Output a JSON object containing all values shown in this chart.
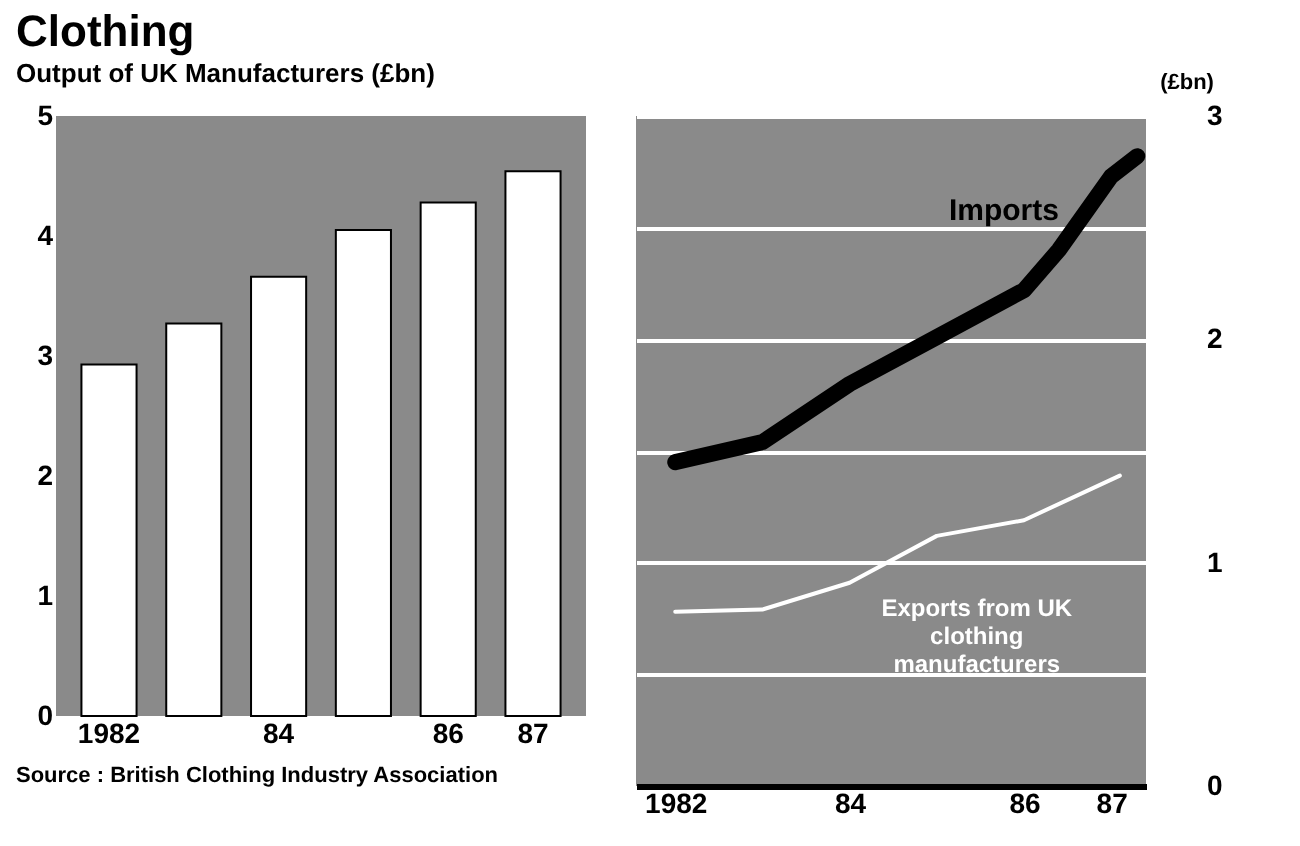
{
  "chart_data": [
    {
      "type": "bar",
      "title": "Clothing",
      "subtitle": "Output of UK Manufacturers (£bn)",
      "categories": [
        "1982",
        null,
        "84",
        null,
        "86",
        "87"
      ],
      "values": [
        2.93,
        3.27,
        3.66,
        4.05,
        4.28,
        4.54
      ],
      "color": "#ffffff",
      "ylim": [
        0,
        5
      ],
      "yticks": [
        0,
        1,
        2,
        3,
        4,
        5
      ],
      "grid": false,
      "annotations": [
        "Source : British Clothing Industry Association"
      ]
    },
    {
      "type": "line",
      "ylabel": "(£bn)",
      "grid": "y",
      "xlim": [
        1981.55,
        1987.4
      ],
      "xticks": [
        {
          "value": 1982,
          "label": "1982"
        },
        {
          "value": 1984,
          "label": "84"
        },
        {
          "value": 1986,
          "label": "86"
        },
        {
          "value": 1987,
          "label": "87"
        }
      ],
      "ylim": [
        0,
        3
      ],
      "yticks": [
        0,
        {
          "value": 0.5,
          "label": null
        },
        1,
        {
          "value": 1.5,
          "label": null
        },
        2,
        {
          "value": 2.5,
          "label": null
        },
        3
      ],
      "series": [
        {
          "name": "Imports",
          "color": "#000000",
          "x": [
            1982,
            1983,
            1984,
            1985,
            1986,
            1986.4,
            1987,
            1987.3
          ],
          "values": [
            1.45,
            1.54,
            1.8,
            2.01,
            2.22,
            2.4,
            2.73,
            2.82
          ]
        },
        {
          "name": "Exports from UK clothing manufacturers",
          "color": "#ffffff",
          "x": [
            1982,
            1983,
            1984,
            1985,
            1986,
            1987.1
          ],
          "values": [
            0.78,
            0.79,
            0.91,
            1.12,
            1.19,
            1.39
          ]
        }
      ]
    }
  ]
}
